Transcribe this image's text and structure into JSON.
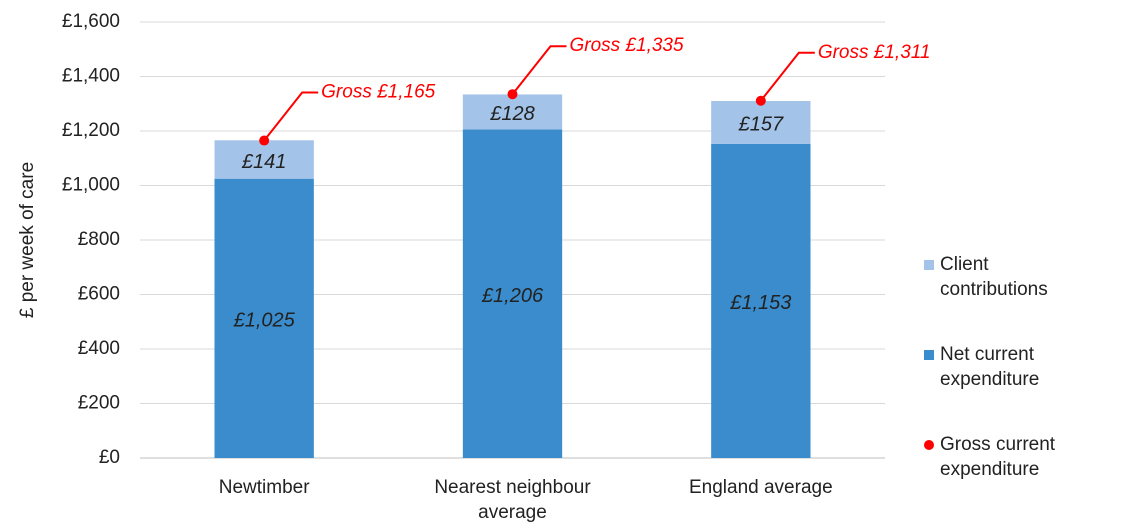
{
  "chart_data": {
    "type": "bar",
    "stacked": true,
    "ylabel": "£ per week of care",
    "categories": [
      "Newtimber",
      "Nearest neighbour average",
      "England average"
    ],
    "series": [
      {
        "name": "Net current expenditure",
        "color": "#3a8ccc",
        "values": [
          1025,
          1206,
          1153
        ],
        "value_labels": [
          "£1,025",
          "£1,206",
          "£1,153"
        ]
      },
      {
        "name": "Client contributions",
        "color": "#a3c4e8",
        "values": [
          141,
          128,
          157
        ],
        "value_labels": [
          "£141",
          "£128",
          "£157"
        ]
      },
      {
        "name": "Gross current expenditure",
        "type": "scatter",
        "color": "#ff0000",
        "values": [
          1165,
          1335,
          1311
        ],
        "value_labels": [
          "Gross £1,165",
          "Gross £1,335",
          "Gross £1,311"
        ]
      }
    ],
    "ylim": [
      0,
      1600
    ],
    "yticks": [
      {
        "value": 0,
        "label": "£0"
      },
      {
        "value": 200,
        "label": "£200"
      },
      {
        "value": 400,
        "label": "£400"
      },
      {
        "value": 600,
        "label": "£600"
      },
      {
        "value": 800,
        "label": "£800"
      },
      {
        "value": 1000,
        "label": "£1,000"
      },
      {
        "value": 1200,
        "label": "£1,200"
      },
      {
        "value": 1400,
        "label": "£1,400"
      },
      {
        "value": 1600,
        "label": "£1,600"
      }
    ],
    "grid": true,
    "legend": "right"
  }
}
